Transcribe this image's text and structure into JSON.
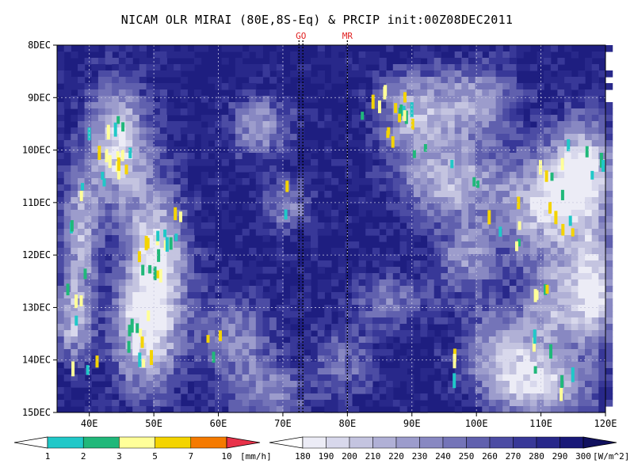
{
  "chart_data": {
    "type": "heatmap",
    "title": "NICAM OLR MIRAI (80E,8S-Eq) & PRCIP init:00Z08DEC2011",
    "xlabel": "",
    "ylabel": "",
    "xlim": [
      35,
      120
    ],
    "x_ticks": [
      {
        "value": 40,
        "label": "40E"
      },
      {
        "value": 50,
        "label": "50E"
      },
      {
        "value": 60,
        "label": "60E"
      },
      {
        "value": 70,
        "label": "70E"
      },
      {
        "value": 80,
        "label": "80E"
      },
      {
        "value": 90,
        "label": "90E"
      },
      {
        "value": 100,
        "label": "100E"
      },
      {
        "value": 110,
        "label": "110E"
      },
      {
        "value": 120,
        "label": "120E"
      }
    ],
    "ylim": [
      8,
      15
    ],
    "y_ticks": [
      {
        "value": 8,
        "label": "8DEC"
      },
      {
        "value": 9,
        "label": "9DEC"
      },
      {
        "value": 10,
        "label": "10DEC"
      },
      {
        "value": 11,
        "label": "11DEC"
      },
      {
        "value": 12,
        "label": "12DEC"
      },
      {
        "value": 13,
        "label": "13DEC"
      },
      {
        "value": 14,
        "label": "14DEC"
      },
      {
        "value": 15,
        "label": "15DEC"
      }
    ],
    "grid": true,
    "markers": [
      {
        "label": "GO",
        "x": [
          72.5,
          73.1
        ],
        "color": "#e02020"
      },
      {
        "label": "MR",
        "x": [
          80
        ],
        "color": "#e02020"
      }
    ],
    "precip_colorbar": {
      "unit": "[mm/h]",
      "levels": [
        "1",
        "2",
        "3",
        "5",
        "7",
        "10"
      ],
      "colors": [
        "#ffffff",
        "#20c8c8",
        "#20b87a",
        "#ffff99",
        "#f4d400",
        "#f57a00",
        "#e8324a"
      ]
    },
    "olr_colorbar": {
      "unit": "[W/m^2]",
      "levels": [
        "180",
        "190",
        "200",
        "210",
        "220",
        "230",
        "240",
        "250",
        "260",
        "270",
        "280",
        "290",
        "300"
      ],
      "colors": [
        "#ffffff",
        "#ececf6",
        "#d8d8ec",
        "#c4c4e0",
        "#b0b0d6",
        "#9c9ccc",
        "#8888c2",
        "#7474b8",
        "#6060ae",
        "#4c4ca4",
        "#383898",
        "#28288a",
        "#181878",
        "#10105e"
      ]
    }
  }
}
